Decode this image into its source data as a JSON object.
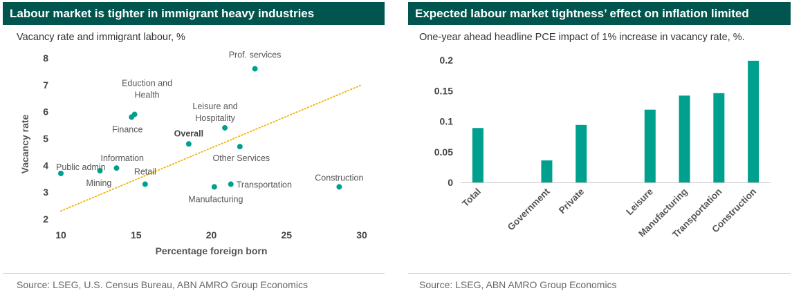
{
  "left_panel": {
    "title": "Labour market is tighter in immigrant heavy industries",
    "subtitle": "Vacancy rate and immigrant labour, %",
    "source": "Source:  LSEG, U.S. Census Bureau, ABN AMRO Group Economics"
  },
  "right_panel": {
    "title": "Expected labour market tightness’ effect on inflation limited",
    "subtitle": "One-year ahead headline PCE impact of 1% increase in vacancy rate, %.",
    "source": "Source: LSEG, ABN AMRO Group Economics"
  },
  "colors": {
    "accent": "#00a08e",
    "title_bg": "#00564f",
    "trendline": "#f0b400"
  },
  "chart_data": [
    {
      "type": "scatter",
      "title": "Labour market is tighter in immigrant heavy industries",
      "subtitle": "Vacancy rate and immigrant labour, %",
      "xlabel": "Percentage foreign born",
      "ylabel": "Vacancy rate",
      "xlim": [
        10,
        30
      ],
      "ylim": [
        2,
        8
      ],
      "xticks": [
        "10",
        "15",
        "20",
        "25",
        "30"
      ],
      "yticks": [
        "2",
        "3",
        "4",
        "5",
        "6",
        "7",
        "8"
      ],
      "trendline": {
        "style": "dotted",
        "from": [
          10,
          2.3
        ],
        "to": [
          30,
          7.0
        ]
      },
      "points": [
        {
          "label": "Prof. services",
          "x": 22.9,
          "y": 7.6,
          "bold": false
        },
        {
          "label": "Eduction and Health",
          "x": 14.9,
          "y": 5.9,
          "bold": false
        },
        {
          "label": "Finance",
          "x": 14.7,
          "y": 5.8,
          "bold": false
        },
        {
          "label": "Leisure and Hospitality",
          "x": 20.9,
          "y": 5.4,
          "bold": false
        },
        {
          "label": "Overall",
          "x": 18.5,
          "y": 4.8,
          "bold": true
        },
        {
          "label": "Other Services",
          "x": 21.9,
          "y": 4.7,
          "bold": false
        },
        {
          "label": "Information",
          "x": 13.7,
          "y": 3.9,
          "bold": false
        },
        {
          "label": "Mining",
          "x": 12.6,
          "y": 3.8,
          "bold": false
        },
        {
          "label": "Public admin",
          "x": 10.0,
          "y": 3.7,
          "bold": false
        },
        {
          "label": "Retail",
          "x": 15.6,
          "y": 3.3,
          "bold": false
        },
        {
          "label": "Transportation",
          "x": 21.3,
          "y": 3.3,
          "bold": false
        },
        {
          "label": "Manufacturing",
          "x": 20.2,
          "y": 3.2,
          "bold": false
        },
        {
          "label": "Construction",
          "x": 28.5,
          "y": 3.2,
          "bold": false
        }
      ]
    },
    {
      "type": "bar",
      "title": "Expected labour market tightness’ effect on inflation limited",
      "subtitle": "One-year ahead headline PCE impact of 1% increase in vacancy rate, %.",
      "ylim": [
        0,
        0.2
      ],
      "yticks": [
        "0",
        "0.05",
        "0.1",
        "0.15",
        "0.2"
      ],
      "categories": [
        "Total",
        "",
        "Government",
        "Private",
        "",
        "Leisure",
        "Manufacturing",
        "Transportation",
        "Construction"
      ],
      "values": [
        0.089,
        null,
        0.036,
        0.094,
        null,
        0.119,
        0.142,
        0.146,
        0.199
      ]
    }
  ]
}
